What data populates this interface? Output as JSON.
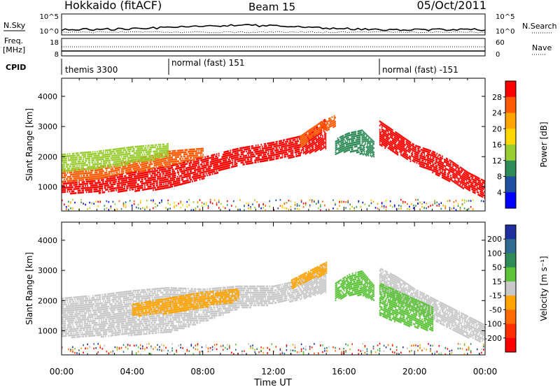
{
  "header": {
    "title": "Hokkaido (fitACF)",
    "beam": "Beam 15",
    "date": "05/Oct/2011"
  },
  "panels": {
    "nsky_label": "N.Sky",
    "nsky_ticks": [
      "10^5",
      "10^0"
    ],
    "nsearch_label": "N.Search",
    "freq_label_1": "Freq.",
    "freq_label_2": "[MHz]",
    "freq_ticks": [
      "18",
      "8"
    ],
    "nave_label": "Nave",
    "nave_ticks": [
      "60",
      "0"
    ],
    "cpid_label": "CPID",
    "cpid_segments": [
      {
        "label": "themis 3300",
        "start": 0
      },
      {
        "label": "normal (fast) 151",
        "start": 6
      },
      {
        "label": "normal (fast) -151",
        "start": 18
      }
    ]
  },
  "chart_data": [
    {
      "type": "heatmap",
      "name": "power",
      "ylabel": "Slant Range [km]",
      "yticks": [
        1000,
        2000,
        3000,
        4000
      ],
      "ylim": [
        200,
        4600
      ],
      "xlim": [
        0,
        24
      ],
      "colorbar": {
        "label": "Power [dB]",
        "ticks": [
          "28",
          "24",
          "20",
          "16",
          "12",
          "8",
          "4"
        ],
        "colors": [
          "#ff0000",
          "#ff5a00",
          "#ffa500",
          "#ffd700",
          "#9acd32",
          "#2e8b57",
          "#1f4fa0",
          "#0000ff"
        ]
      },
      "bands": [
        {
          "ts": [
            0,
            2,
            4,
            6,
            8,
            10,
            12,
            13.5,
            15
          ],
          "lo": [
            800,
            820,
            880,
            950,
            1300,
            1750,
            1900,
            2050,
            2300
          ],
          "hi": [
            1200,
            1300,
            1500,
            1700,
            2000,
            2300,
            2500,
            2700,
            3300
          ],
          "color": "#ff0000"
        },
        {
          "ts": [
            0,
            2,
            4,
            6,
            8
          ],
          "lo": [
            1200,
            1300,
            1500,
            1700,
            2000
          ],
          "hi": [
            1550,
            1650,
            1900,
            2200,
            2300
          ],
          "color": "#ff5a00"
        },
        {
          "ts": [
            0,
            2,
            4,
            6
          ],
          "lo": [
            1500,
            1600,
            1800,
            2000
          ],
          "hi": [
            2100,
            2200,
            2350,
            2450
          ],
          "color": "#9acd32"
        },
        {
          "ts": [
            13.5,
            14.5,
            15.5
          ],
          "lo": [
            2300,
            2800,
            3000
          ],
          "hi": [
            2700,
            3100,
            3400
          ],
          "color": "#ff5a00"
        },
        {
          "ts": [
            15.5,
            16.2,
            17,
            17.7
          ],
          "lo": [
            2100,
            2200,
            2100,
            2000
          ],
          "hi": [
            2600,
            2800,
            2900,
            2500
          ],
          "color": "#2e8b57"
        },
        {
          "ts": [
            18,
            19,
            20,
            21,
            22,
            23,
            24
          ],
          "lo": [
            2400,
            2100,
            1800,
            1500,
            1200,
            900,
            600
          ],
          "hi": [
            3200,
            2800,
            2400,
            2200,
            1900,
            1500,
            1200
          ],
          "color": "#ff0000"
        }
      ]
    },
    {
      "type": "heatmap",
      "name": "velocity",
      "ylabel": "Slant Range [km]",
      "yticks": [
        1000,
        2000,
        3000,
        4000
      ],
      "ylim": [
        200,
        4600
      ],
      "xlim": [
        0,
        24
      ],
      "xticks": [
        "00:00",
        "04:00",
        "08:00",
        "12:00",
        "16:00",
        "20:00",
        "00:00"
      ],
      "xlabel": "Time UT",
      "colorbar": {
        "label": "Velocity [m s⁻¹]",
        "ticks": [
          "200",
          "100",
          "50",
          "15",
          "-15",
          "-50",
          "-100",
          "-200"
        ],
        "colors": [
          "#1f2fa0",
          "#2e6b8f",
          "#2e8b57",
          "#5dc43a",
          "#c8c8c8",
          "#ffa500",
          "#ff6a00",
          "#ff3000",
          "#ff0000"
        ]
      },
      "bands": [
        {
          "ts": [
            0,
            2,
            4,
            6,
            8,
            10,
            12,
            13.5,
            15
          ],
          "lo": [
            800,
            820,
            880,
            950,
            1300,
            1750,
            1900,
            2050,
            2300
          ],
          "hi": [
            2100,
            2200,
            2350,
            2450,
            2400,
            2500,
            2500,
            2700,
            3300
          ],
          "color": "#c8c8c8"
        },
        {
          "ts": [
            4,
            6,
            8,
            10
          ],
          "lo": [
            1500,
            1600,
            1800,
            2000
          ],
          "hi": [
            1900,
            2100,
            2300,
            2400
          ],
          "color": "#ffa500"
        },
        {
          "ts": [
            13,
            14,
            15
          ],
          "lo": [
            2400,
            2700,
            2900
          ],
          "hi": [
            2700,
            3000,
            3300
          ],
          "color": "#ffa500"
        },
        {
          "ts": [
            15.5,
            16.3,
            17,
            17.7
          ],
          "lo": [
            2000,
            2200,
            2200,
            2000
          ],
          "hi": [
            2600,
            2900,
            3000,
            2500
          ],
          "color": "#5dc43a"
        },
        {
          "ts": [
            18,
            19,
            20,
            21,
            22,
            23,
            24
          ],
          "lo": [
            2300,
            2000,
            1700,
            1400,
            1100,
            800,
            600
          ],
          "hi": [
            3100,
            2800,
            2400,
            2100,
            1800,
            1500,
            1200
          ],
          "color": "#c8c8c8"
        },
        {
          "ts": [
            18,
            19.5,
            21
          ],
          "lo": [
            1500,
            1200,
            1000
          ],
          "hi": [
            2600,
            2200,
            1800
          ],
          "color": "#5dc43a"
        }
      ]
    }
  ]
}
